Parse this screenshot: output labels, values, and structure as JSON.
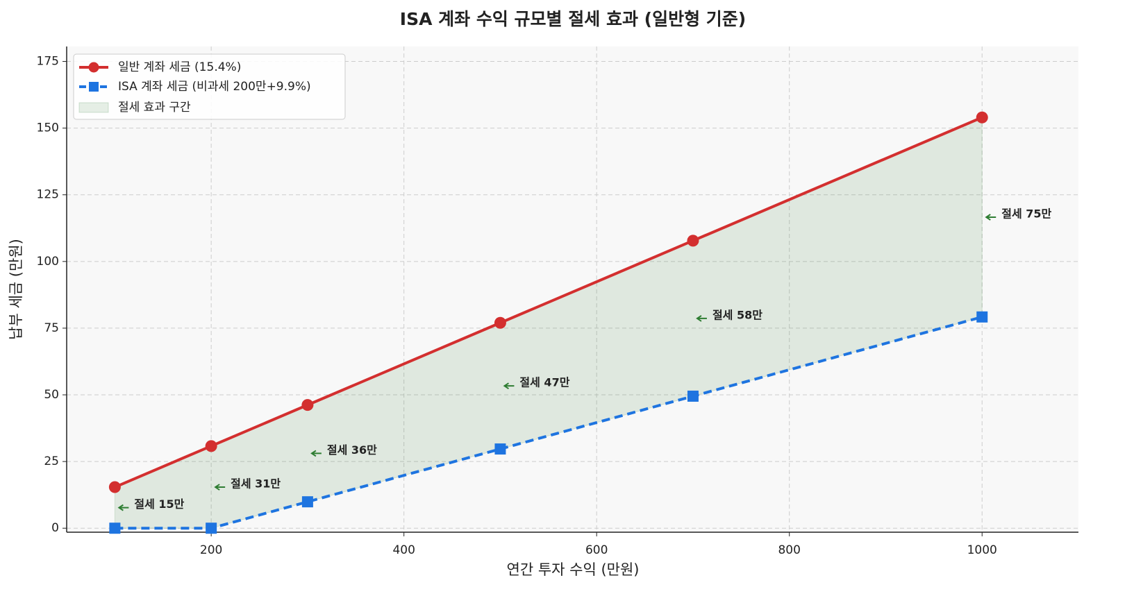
{
  "chart_data": {
    "type": "line",
    "title": "ISA 계좌 수익 규모별 절세 효과 (일반형 기준)",
    "x_label": "연간 투자 수익 (만원)",
    "y_label": "납부 세금 (만원)",
    "x": [
      100,
      200,
      300,
      500,
      700,
      1000
    ],
    "series": [
      {
        "name": "일반 계좌 세금 (15.4%)",
        "color": "#d32f2f",
        "marker": "circle",
        "dashed": false,
        "values": [
          15.4,
          30.8,
          46.2,
          77,
          107.8,
          154
        ]
      },
      {
        "name": "ISA 계좌 세금 (비과세 200만+9.9%)",
        "color": "#1e74e0",
        "marker": "square",
        "dashed": true,
        "values": [
          0,
          0,
          9.9,
          29.7,
          49.5,
          79.2
        ]
      }
    ],
    "fill_between": {
      "label": "절세 효과 구간",
      "color": "#2e7d32"
    },
    "annotations": [
      "절세 15만",
      "절세 31만",
      "절세 36만",
      "절세 47만",
      "절세 58만",
      "절세 75만"
    ],
    "annotation_color": "#2e7d32",
    "xlim": [
      50,
      1100
    ],
    "ylim": [
      -1.5,
      180.6
    ],
    "xticks": [
      200,
      400,
      600,
      800,
      1000
    ],
    "yticks": [
      0,
      25,
      50,
      75,
      100,
      125,
      150,
      175
    ],
    "grid": true,
    "legend": "upper-left"
  }
}
